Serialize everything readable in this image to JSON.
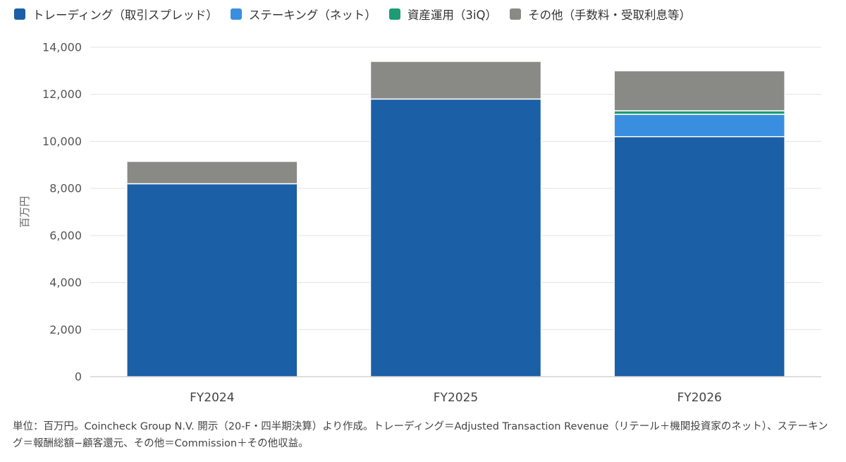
{
  "chart_data": {
    "type": "bar",
    "stacked": true,
    "categories": [
      "FY2024",
      "FY2025",
      "FY2026"
    ],
    "series": [
      {
        "name": "トレーディング（取引スプレッド）",
        "color": "#1b5fa6",
        "values": [
          8200,
          11800,
          10200
        ]
      },
      {
        "name": "ステーキング（ネット）",
        "color": "#3a8ee0",
        "values": [
          0,
          0,
          950
        ]
      },
      {
        "name": "資産運用（3iQ）",
        "color": "#1e9b74",
        "values": [
          0,
          0,
          150
        ]
      },
      {
        "name": "その他（手数料・受取利息等）",
        "color": "#898985",
        "values": [
          950,
          1600,
          1700
        ]
      }
    ],
    "ylabel": "百万円",
    "ylim": [
      0,
      14000
    ],
    "yticks": [
      0,
      2000,
      4000,
      6000,
      8000,
      10000,
      12000,
      14000
    ],
    "ytick_labels": [
      "0",
      "2,000",
      "4,000",
      "6,000",
      "8,000",
      "10,000",
      "12,000",
      "14,000"
    ],
    "grid": true,
    "legend_position": "top"
  },
  "footnote": "単位：百万円。Coincheck Group N.V. 開示（20-F・四半期決算）より作成。トレーディング＝Adjusted Transaction Revenue（リテール＋機関投資家のネット）、ステーキング＝報酬総額−顧客還元、その他＝Commission＋その他収益。"
}
